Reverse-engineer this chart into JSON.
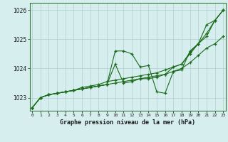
{
  "title": "Graphe pression niveau de la mer (hPa)",
  "hours": [
    0,
    1,
    2,
    3,
    4,
    5,
    6,
    7,
    8,
    9,
    10,
    11,
    12,
    13,
    14,
    15,
    16,
    17,
    18,
    19,
    20,
    21,
    22,
    23
  ],
  "ylim": [
    1022.55,
    1026.25
  ],
  "yticks": [
    1023,
    1024,
    1025,
    1026
  ],
  "bg_color": "#d6eeee",
  "grid_color": "#b0d0d0",
  "line_color": "#1a6b1a",
  "series": [
    [
      1022.65,
      1023.0,
      1023.1,
      1023.15,
      1023.2,
      1023.25,
      1023.3,
      1023.35,
      1023.4,
      1023.45,
      1024.6,
      1024.6,
      1024.5,
      1024.05,
      1024.1,
      1023.2,
      1023.15,
      1023.9,
      1023.95,
      1024.6,
      1024.85,
      1025.5,
      1025.65,
      1026.0
    ],
    [
      1022.65,
      1023.0,
      1023.1,
      1023.15,
      1023.2,
      1023.25,
      1023.3,
      1023.35,
      1023.4,
      1023.45,
      1023.5,
      1023.55,
      1023.6,
      1023.65,
      1023.7,
      1023.75,
      1023.8,
      1023.9,
      1024.0,
      1024.2,
      1024.45,
      1024.7,
      1024.85,
      1025.1
    ],
    [
      1022.65,
      1023.0,
      1023.1,
      1023.15,
      1023.2,
      1023.25,
      1023.3,
      1023.35,
      1023.4,
      1023.45,
      1024.15,
      1023.5,
      1023.55,
      1023.65,
      1023.65,
      1023.7,
      1023.8,
      1024.05,
      1024.15,
      1024.5,
      1024.85,
      1025.1,
      1025.65,
      1026.0
    ],
    [
      1022.65,
      1023.0,
      1023.1,
      1023.15,
      1023.2,
      1023.25,
      1023.35,
      1023.4,
      1023.45,
      1023.55,
      1023.6,
      1023.65,
      1023.7,
      1023.75,
      1023.8,
      1023.85,
      1023.95,
      1024.05,
      1024.15,
      1024.55,
      1024.85,
      1025.2,
      1025.65,
      1026.0
    ]
  ]
}
